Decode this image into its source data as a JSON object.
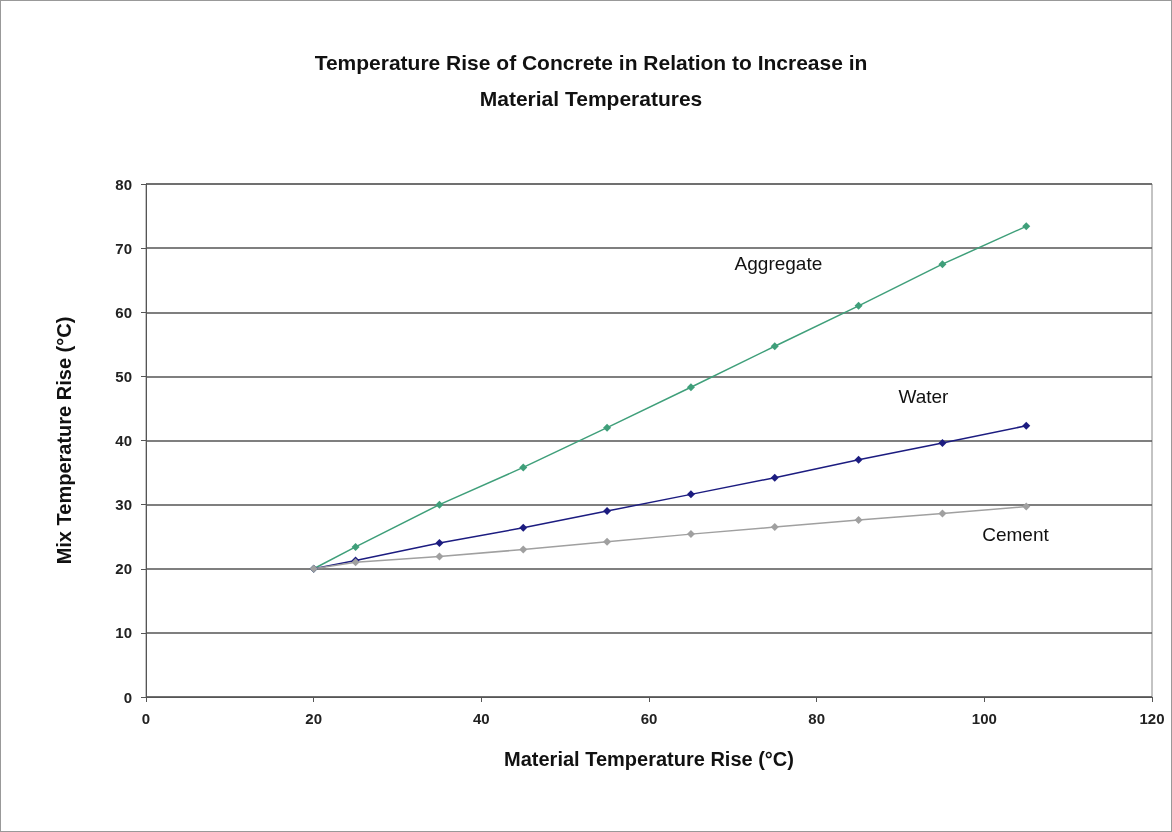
{
  "chart_data": {
    "type": "line",
    "title": "Temperature Rise of Concrete in Relation to Increase in\nMaterial Temperatures",
    "xlabel": "Material Temperature Rise (°C)",
    "ylabel": "Mix Temperature Rise (°C)",
    "x": [
      20,
      25,
      35,
      45,
      55,
      65,
      75,
      85,
      95,
      105
    ],
    "series": [
      {
        "name": "Aggregate",
        "color": "#3f9f7a",
        "values": [
          20,
          23.4,
          30,
          35.8,
          42,
          48.3,
          54.7,
          61,
          67.5,
          73.4
        ]
      },
      {
        "name": "Water",
        "color": "#1c1c80",
        "values": [
          20,
          21.3,
          24,
          26.4,
          29,
          31.6,
          34.2,
          37,
          39.6,
          42.3
        ]
      },
      {
        "name": "Cement",
        "color": "#a0a0a0",
        "values": [
          20,
          21,
          21.9,
          23,
          24.2,
          25.4,
          26.5,
          27.6,
          28.6,
          29.7
        ]
      }
    ],
    "xlim": [
      0,
      120
    ],
    "xticks": [
      0,
      20,
      40,
      60,
      80,
      100,
      120
    ],
    "ylim": [
      0,
      80
    ],
    "yticks": [
      0,
      10,
      20,
      30,
      40,
      50,
      60,
      70,
      80
    ],
    "grid": "y",
    "legend": false,
    "marker": "diamond",
    "line_style": "solid"
  }
}
